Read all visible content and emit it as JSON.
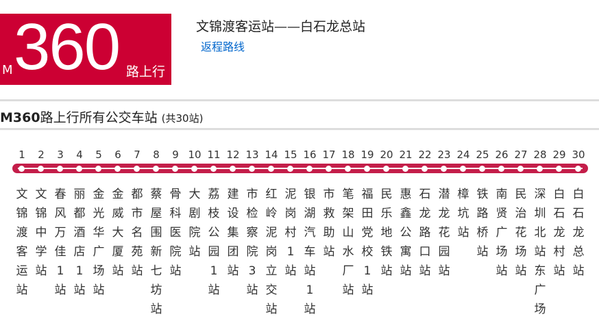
{
  "badge": {
    "prefix": "M",
    "number": "360",
    "suffix": "路上行"
  },
  "route": {
    "title": "文锦渡客运站——白石龙总站",
    "return_link": "返程路线"
  },
  "section": {
    "route_name": "M360",
    "title": "路上行所有公交车站",
    "count": "(共30站)"
  },
  "line_color": "#c41e4a",
  "stations": [
    "文锦渡客运站",
    "文锦中学站",
    "春风万佳1站",
    "丽都酒店1站",
    "金光华广场站",
    "金威大厦站",
    "都市名苑站",
    "蔡屋围新七坊站",
    "骨科医院站",
    "大剧院站",
    "荔枝公园1站",
    "建设集团站",
    "市检察院3站",
    "红岭泥岗立交站",
    "泥岗村1站",
    "银湖汽车站1站",
    "市救助站",
    "笔架山水厂站",
    "福田党校1站",
    "民乐地铁站",
    "惠鑫公寓站",
    "石龙路口站",
    "潜龙花园站",
    "樟坑站",
    "铁路桥站",
    "南贤广场站",
    "民治花场站",
    "深圳北站东广场",
    "白石龙村站",
    "白石龙总站"
  ]
}
